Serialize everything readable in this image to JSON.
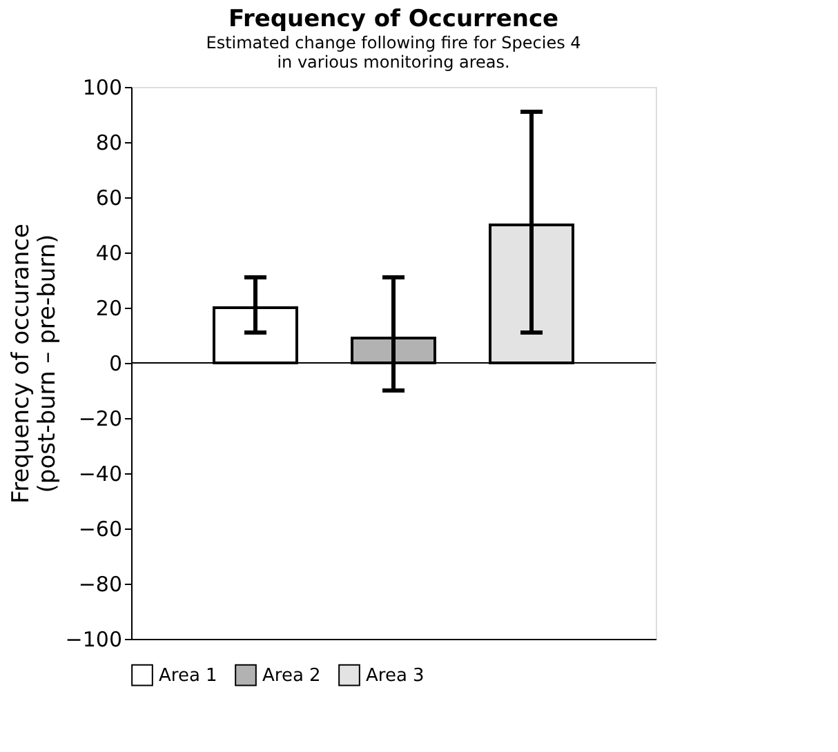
{
  "chart_data": {
    "type": "bar",
    "title": "Frequency of Occurrence",
    "subtitle": "Estimated change following fire for Species 4\nin various monitoring areas.",
    "ylabel": "Frequency of occurance\n(post-burn – pre-burn)",
    "categories": [
      null,
      null,
      null
    ],
    "series": [
      {
        "name": "Area 1",
        "color": "#ffffff",
        "values": [
          20,
          null,
          null
        ],
        "errors": [
          [
            11,
            31
          ],
          null,
          null
        ]
      },
      {
        "name": "Area 2",
        "color": "#b2b2b2",
        "values": [
          null,
          9,
          null
        ],
        "errors": [
          null,
          [
            -10,
            31
          ],
          null
        ]
      },
      {
        "name": "Area 3",
        "color": "#e2e3e2",
        "values": [
          null,
          null,
          50
        ],
        "errors": [
          null,
          null,
          [
            11,
            91
          ]
        ]
      }
    ],
    "ylim": [
      -100,
      100
    ],
    "yticks": [
      -100,
      -80,
      -60,
      -40,
      -20,
      0,
      20,
      40,
      60,
      80,
      100
    ],
    "ref_lines": [
      {
        "axis": "y",
        "value": 0
      }
    ],
    "grid": false,
    "legend": "bottom"
  }
}
